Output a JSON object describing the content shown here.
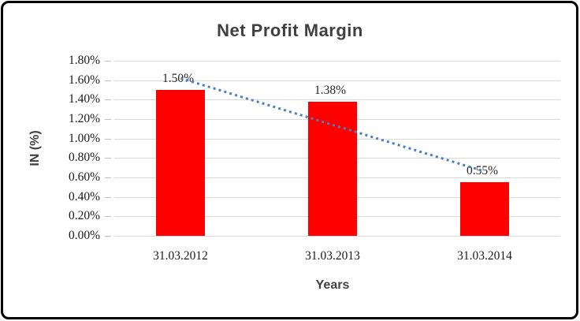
{
  "chart_data": {
    "type": "bar",
    "title": "Net Profit Margin",
    "xlabel": "Years",
    "ylabel": "IN (%)",
    "categories": [
      "31.03.2012",
      "31.03.2013",
      "31.03.2014"
    ],
    "values": [
      1.5,
      1.38,
      0.55
    ],
    "data_labels": [
      "1.50%",
      "1.38%",
      "0.55%"
    ],
    "y_ticks": [
      "1.80%",
      "1.60%",
      "1.40%",
      "1.20%",
      "1.00%",
      "0.80%",
      "0.60%",
      "0.40%",
      "0.20%",
      "0.00%"
    ],
    "ylim": [
      0,
      1.8
    ],
    "y_step": 0.2,
    "grid": true,
    "legend": "none",
    "bar_color": "#ff0000",
    "grid_color": "#d9d9d9",
    "title_color": "#404040",
    "trendline": {
      "type": "linear",
      "style": "dotted",
      "color": "#4a7fc1",
      "start_value": 1.62,
      "end_value": 0.67
    }
  }
}
